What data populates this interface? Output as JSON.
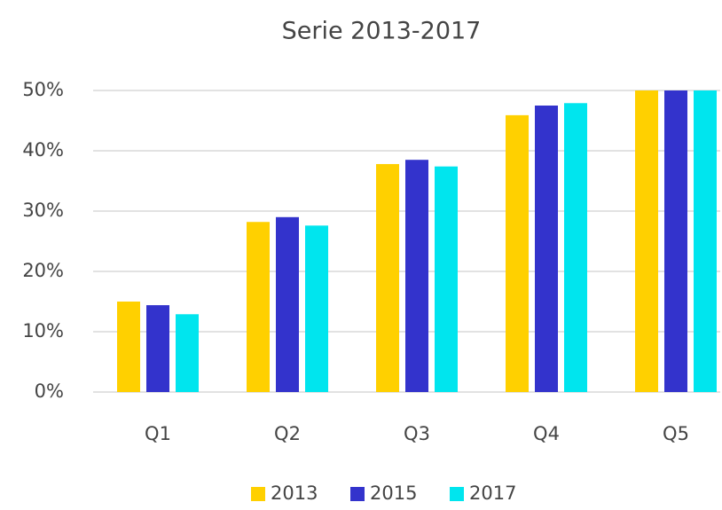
{
  "chart_data": {
    "type": "bar",
    "title": "Serie 2013-2017",
    "categories": [
      "Q1",
      "Q2",
      "Q3",
      "Q4",
      "Q5"
    ],
    "series": [
      {
        "name": "2013",
        "color": "#FFD000",
        "values": [
          15,
          28.2,
          37.8,
          45.9,
          50
        ]
      },
      {
        "name": "2015",
        "color": "#3333CC",
        "values": [
          14.4,
          29,
          38.5,
          47.5,
          50
        ]
      },
      {
        "name": "2017",
        "color": "#00E5EE",
        "values": [
          12.9,
          27.6,
          37.4,
          47.9,
          50
        ]
      }
    ],
    "ylim": [
      0,
      50
    ],
    "yticks": [
      {
        "value": 0,
        "label": "0%"
      },
      {
        "value": 10,
        "label": "10%"
      },
      {
        "value": 20,
        "label": "20%"
      },
      {
        "value": 30,
        "label": "30%"
      },
      {
        "value": 40,
        "label": "40%"
      },
      {
        "value": 50,
        "label": "50%"
      }
    ],
    "grid": true,
    "legend": "bottom"
  }
}
